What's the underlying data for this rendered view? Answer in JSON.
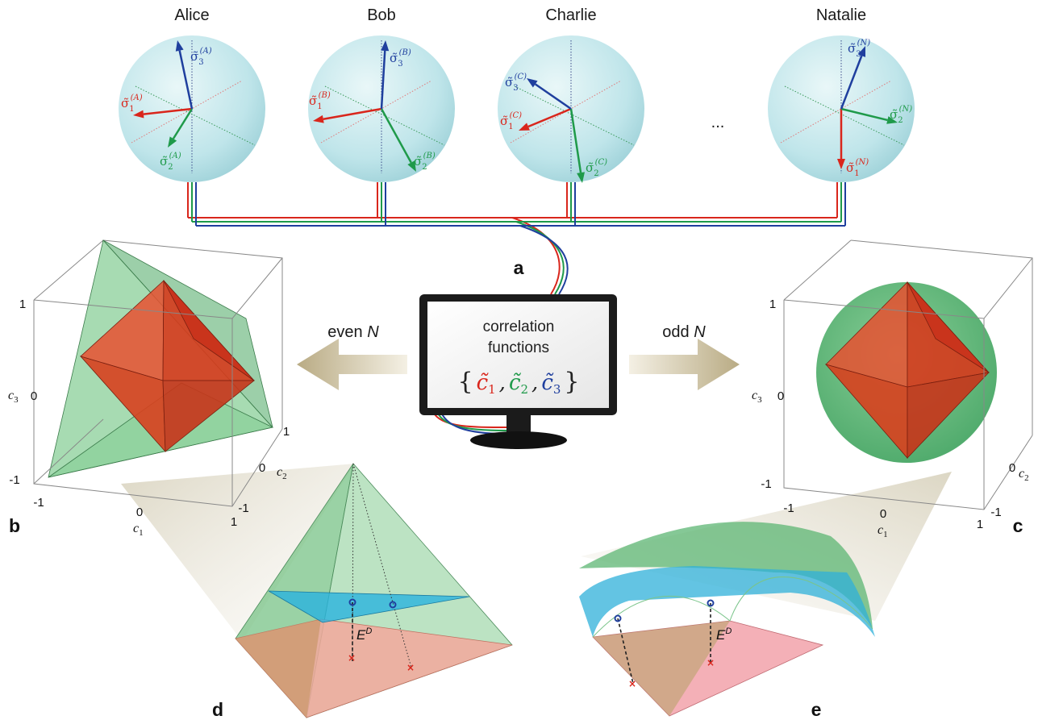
{
  "parties": [
    {
      "name": "Alice",
      "sup": "(A)"
    },
    {
      "name": "Bob",
      "sup": "(B)"
    },
    {
      "name": "Charlie",
      "sup": "(C)"
    },
    {
      "name": "Natalie",
      "sup": "(N)"
    }
  ],
  "ellipsis": "...",
  "sigma_symbol": "σ̃",
  "sigma_subs": [
    "1",
    "2",
    "3"
  ],
  "panel_labels": {
    "a": "a",
    "b": "b",
    "c": "c",
    "d": "d",
    "e": "e"
  },
  "left_arrow_label": {
    "prefix": "even ",
    "var": "N"
  },
  "right_arrow_label": {
    "prefix": "odd ",
    "var": "N"
  },
  "monitor": {
    "line1": "correlation",
    "line2": "functions",
    "open_brace": "{",
    "close_brace": "}",
    "comma": ",",
    "c_symbol": "c̃",
    "subs": [
      "1",
      "2",
      "3"
    ]
  },
  "axes": {
    "c1": {
      "letter": "c",
      "sub": "1"
    },
    "c2": {
      "letter": "c",
      "sub": "2"
    },
    "c3": {
      "letter": "c",
      "sub": "3"
    },
    "ticks": [
      "-1",
      "0",
      "1"
    ]
  },
  "ed_label": {
    "base": "E",
    "sup": "D"
  },
  "colors": {
    "red": "#d9261c",
    "green": "#1f9a4a",
    "blue": "#1f3f9e",
    "sphere": "#bfe6ea",
    "polytope_green": "#4fb46a",
    "octahedron_red": "#e0401f",
    "slice_blue": "#2fb5df",
    "base_pink": "#f2a69a",
    "arrow_tan": "#c9bd9d"
  }
}
